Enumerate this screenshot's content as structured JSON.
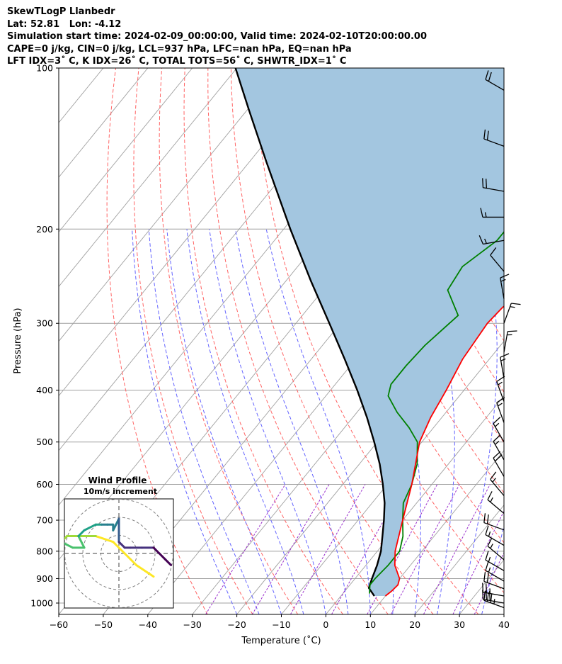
{
  "header": {
    "line1": "SkewTLogP Llanbedr",
    "line2": "Lat: 52.81   Lon: -4.12",
    "line3": "Simulation start time: 2024-02-09_00:00:00, Valid time: 2024-02-10T20:00:00.00",
    "line4": "CAPE=0 j/kg, CIN=0 j/kg, LCL=937 hPa, LFC=nan hPa, EQ=nan hPa",
    "line5": "LFT IDX=3˚ C, K IDX=26˚ C, TOTAL TOTS=56˚ C, SHWTR_IDX=1˚ C"
  },
  "chart_data": {
    "type": "skewt",
    "xlabel": "Temperature (˚C)",
    "ylabel": "Pressure (hPa)",
    "xlim": [
      -60,
      40
    ],
    "ylim": [
      1050,
      100
    ],
    "x_ticks": [
      -60,
      -50,
      -40,
      -30,
      -20,
      -10,
      0,
      10,
      20,
      30,
      40
    ],
    "x_tick_labels": [
      "−60",
      "−50",
      "−40",
      "−30",
      "−20",
      "−10",
      "0",
      "10",
      "20",
      "30",
      "40"
    ],
    "y_ticks": [
      1000,
      900,
      800,
      700,
      600,
      500,
      400,
      300,
      200,
      100
    ],
    "grid": true,
    "colors": {
      "temperature": "#ff0000",
      "dewpoint": "#008000",
      "parcel": "#000000",
      "fill": "#a3c6e0",
      "dry_adiabat": "#ff6464",
      "moist_adiabat": "#6464ff",
      "mixing_ratio": "#9b30cd",
      "isotherm": "#a0a0a0"
    },
    "temperature": {
      "name": "Temperature",
      "p": [
        970,
        950,
        925,
        900,
        850,
        800,
        700,
        600,
        500,
        450,
        400,
        350,
        300,
        280,
        260,
        240,
        220,
        200,
        180,
        160,
        150,
        130,
        110,
        100
      ],
      "t": [
        10,
        10.5,
        10.8,
        10,
        6.5,
        4,
        0,
        -4.5,
        -10.5,
        -12.5,
        -14,
        -16,
        -17,
        -16.5,
        -14,
        -12,
        -11.5,
        -10.5,
        -9.5,
        -9,
        -8,
        -6.5,
        -5.5,
        -5
      ]
    },
    "dewpoint": {
      "name": "Dewpoint",
      "p": [
        960,
        925,
        900,
        850,
        800,
        750,
        700,
        650,
        600,
        550,
        500,
        470,
        440,
        410,
        390,
        360,
        330,
        290,
        260,
        235,
        210,
        190,
        180,
        150,
        130,
        100
      ],
      "t": [
        6,
        4.5,
        4.5,
        5,
        5,
        3,
        0,
        -3,
        -4.5,
        -7,
        -11,
        -15.5,
        -21,
        -26,
        -27.5,
        -27.5,
        -27,
        -25,
        -32,
        -33,
        -30,
        -30,
        -32,
        -35,
        -40,
        -45
      ]
    },
    "parcel": {
      "name": "Parcel",
      "p": [
        970,
        937,
        900,
        850,
        800,
        750,
        700,
        650,
        600,
        550,
        500,
        450,
        400,
        350,
        300,
        250,
        200,
        150,
        120,
        100
      ],
      "t": [
        7.5,
        4.8,
        3.8,
        2.5,
        0.8,
        -1.6,
        -4.2,
        -7.2,
        -11,
        -15.4,
        -20.7,
        -26.8,
        -34,
        -42.5,
        -52.5,
        -64.4,
        -78.5,
        -96.1,
        -109.5,
        -120.3
      ]
    },
    "wind_barbs": {
      "p": [
        110,
        140,
        170,
        190,
        210,
        240,
        270,
        300,
        340,
        380,
        420,
        460,
        500,
        540,
        580,
        630,
        680,
        730,
        780,
        830,
        870,
        910,
        940,
        970,
        1000,
        1020
      ],
      "speed_kt": [
        20,
        20,
        20,
        15,
        15,
        10,
        15,
        15,
        15,
        15,
        15,
        15,
        15,
        15,
        20,
        15,
        15,
        20,
        15,
        15,
        15,
        15,
        20,
        25,
        30,
        35
      ],
      "dir_deg": [
        300,
        290,
        280,
        270,
        260,
        320,
        350,
        20,
        10,
        350,
        340,
        340,
        330,
        330,
        330,
        320,
        310,
        290,
        300,
        310,
        300,
        300,
        290,
        280,
        280,
        290
      ]
    },
    "wind_profile_inset": {
      "title": "Wind Profile",
      "subtitle": "10m/s increment",
      "u": [
        6,
        3,
        1,
        -1,
        -4,
        -7,
        -9,
        -10,
        -10,
        -8,
        -6,
        -7,
        -6,
        -4,
        -3,
        -2,
        -1,
        -1,
        0,
        0,
        0,
        0,
        1,
        2,
        4,
        6,
        7,
        8,
        9
      ],
      "v": [
        -4,
        -2,
        0,
        2,
        3,
        3,
        3,
        2,
        2,
        1,
        1,
        3,
        4,
        5,
        5,
        5,
        5,
        4,
        6,
        5,
        3,
        2,
        1,
        1,
        1,
        1,
        0,
        -1,
        -2
      ]
    }
  }
}
